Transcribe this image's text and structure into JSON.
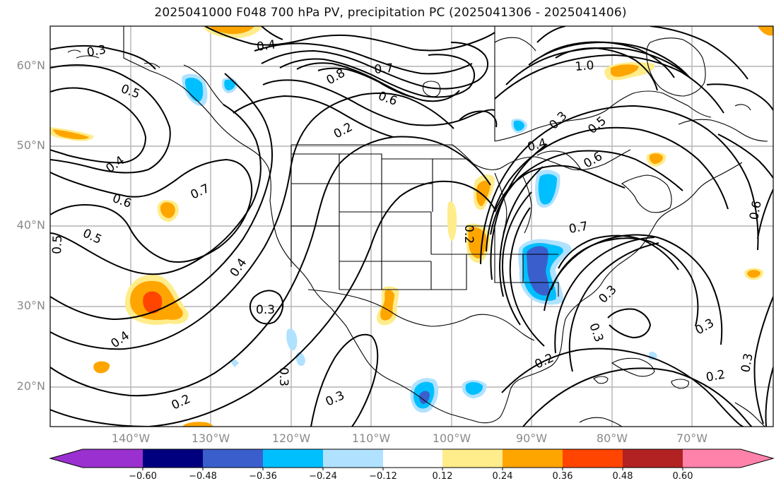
{
  "title": "2025041000 F048 700 hPa PV, precipitation PC (2025041306 - 2025041406)",
  "latitude_labels": [
    "60°N",
    "50°N",
    "40°N",
    "30°N",
    "20°N"
  ],
  "longitude_labels": [
    "140°W",
    "130°W",
    "120°W",
    "110°W",
    "100°W",
    "90°W",
    "80°W",
    "70°W"
  ],
  "contour_labels": [
    "0.3",
    "0.4",
    "0.5",
    "0.8",
    "0.7",
    "0.6",
    "0.2",
    "1.0",
    "0.4",
    "0.6",
    "0.7",
    "0.5",
    "0.6",
    "0.5",
    "0.4",
    "0.3",
    "0.4",
    "0.7",
    "0.6",
    "0.3",
    "0.3",
    "0.2",
    "0.3",
    "0.2",
    "0.3",
    "0.3",
    "0.2",
    "0.3",
    "0.2",
    "0.5",
    "0.3",
    "0.4"
  ],
  "colorbar": {
    "tick_labels": [
      "−0.60",
      "−0.48",
      "−0.36",
      "−0.24",
      "−0.12",
      "0.12",
      "0.24",
      "0.36",
      "0.48",
      "0.60"
    ],
    "colors": [
      "#9b30d0",
      "#00007f",
      "#3a5fcd",
      "#00bfff",
      "#b0e2ff",
      "#ffffff",
      "#ffec8b",
      "#ffa500",
      "#ff4500",
      "#b22222",
      "#ff82ab"
    ]
  },
  "colors": {
    "contour": "#000000",
    "grid": "#b4b4b4",
    "coast": "#000000"
  }
}
